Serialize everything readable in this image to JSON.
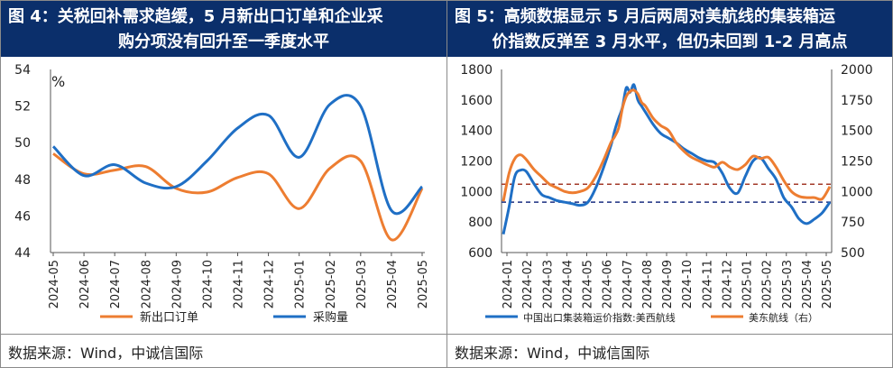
{
  "left": {
    "title_line1": "图 4：关税回补需求趋缓，5 月新出口订单和企业采",
    "title_line2": "购分项没有回升至一季度水平",
    "source": "数据来源：Wind，中诚信国际"
  },
  "right": {
    "title_line1": "图 5：高频数据显示 5 月后两周对美航线的集装箱运",
    "title_line2": "价指数反弹至 3 月水平，但仍未回到 1-2 月高点",
    "source": "数据来源：Wind，中诚信国际"
  },
  "colors": {
    "blue": "#1f6fc5",
    "orange": "#ed7d31",
    "header": "#0b2f6b",
    "ref_red": "#a33a2a",
    "ref_blue": "#1a2f80"
  },
  "chart_data": [
    {
      "type": "line",
      "title": "",
      "unit": "%",
      "categories": [
        "2024-05",
        "2024-06",
        "2024-07",
        "2024-08",
        "2024-09",
        "2024-10",
        "2024-11",
        "2024-12",
        "2025-01",
        "2025-02",
        "2025-03",
        "2025-04",
        "2025-05"
      ],
      "ylim": [
        44,
        54
      ],
      "yticks": [
        44,
        46,
        48,
        50,
        52,
        54
      ],
      "grid": false,
      "legend_position": "bottom",
      "series": [
        {
          "name": "新出口订单",
          "color": "#ed7d31",
          "values": [
            49.4,
            48.3,
            48.5,
            48.7,
            47.5,
            47.3,
            48.1,
            48.3,
            46.4,
            48.6,
            49.0,
            44.7,
            47.5
          ]
        },
        {
          "name": "采购量",
          "color": "#1f6fc5",
          "values": [
            49.8,
            48.2,
            48.8,
            47.8,
            47.6,
            49.0,
            50.8,
            51.5,
            49.2,
            52.1,
            52.0,
            46.3,
            47.6
          ]
        }
      ]
    },
    {
      "type": "line",
      "title": "",
      "categories": [
        "2024-01",
        "2024-02",
        "2024-03",
        "2024-04",
        "2024-05",
        "2024-06",
        "2024-07",
        "2024-08",
        "2024-09",
        "2024-10",
        "2024-11",
        "2024-12",
        "2025-01",
        "2025-02",
        "2025-03",
        "2025-04",
        "2025-05"
      ],
      "ylim_left": [
        600,
        1800
      ],
      "yticks_left": [
        600,
        800,
        1000,
        1200,
        1400,
        1600,
        1800
      ],
      "ylim_right": [
        500,
        2000
      ],
      "yticks_right": [
        500,
        750,
        1000,
        1250,
        1500,
        1750,
        2000
      ],
      "grid": false,
      "legend_position": "bottom",
      "reference_lines": [
        {
          "axis": "right",
          "value": 1060,
          "color": "#a33a2a",
          "style": "dashed"
        },
        {
          "axis": "left",
          "value": 930,
          "color": "#1a2f80",
          "style": "dashed"
        }
      ],
      "series": [
        {
          "name": "中国出口集装箱运价指数:美西航线",
          "axis": "left",
          "color": "#1f6fc5",
          "x": [
            0,
            0.3,
            0.6,
            0.9,
            1.2,
            1.6,
            2.0,
            2.4,
            2.8,
            3.2,
            3.6,
            4.0,
            4.4,
            4.8,
            5.2,
            5.6,
            5.8,
            6.0,
            6.2,
            6.4,
            6.6,
            6.8,
            7.0,
            7.2,
            7.4,
            7.8,
            8.2,
            8.6,
            9.0,
            9.4,
            9.8,
            10.2,
            10.6,
            11.0,
            11.4,
            11.8,
            12.2,
            12.6,
            13.0,
            13.4,
            13.8,
            14.2,
            14.6,
            15.0,
            15.4,
            15.8,
            16.2,
            16.6,
            17.0
          ],
          "values": [
            720,
            900,
            1100,
            1140,
            1130,
            1050,
            980,
            960,
            940,
            930,
            920,
            910,
            930,
            1020,
            1150,
            1300,
            1400,
            1480,
            1550,
            1680,
            1650,
            1700,
            1600,
            1560,
            1520,
            1440,
            1380,
            1350,
            1320,
            1280,
            1250,
            1220,
            1200,
            1190,
            1120,
            1020,
            990,
            1100,
            1200,
            1220,
            1150,
            1080,
            960,
            900,
            820,
            790,
            820,
            860,
            930
          ]
        },
        {
          "name": "美东航线（右）",
          "axis": "right",
          "color": "#ed7d31",
          "x": [
            0,
            0.3,
            0.6,
            0.9,
            1.2,
            1.6,
            2.0,
            2.4,
            2.8,
            3.2,
            3.6,
            4.0,
            4.4,
            4.8,
            5.2,
            5.6,
            5.8,
            6.0,
            6.2,
            6.4,
            6.6,
            6.8,
            7.0,
            7.2,
            7.4,
            7.8,
            8.2,
            8.6,
            9.0,
            9.4,
            9.8,
            10.2,
            10.6,
            11.0,
            11.4,
            11.8,
            12.2,
            12.6,
            13.0,
            13.4,
            13.8,
            14.2,
            14.6,
            15.0,
            15.4,
            15.8,
            16.2,
            16.6,
            17.0
          ],
          "values": [
            920,
            1150,
            1270,
            1300,
            1260,
            1180,
            1120,
            1060,
            1030,
            1000,
            990,
            1000,
            1030,
            1120,
            1250,
            1400,
            1450,
            1520,
            1680,
            1780,
            1820,
            1830,
            1800,
            1730,
            1700,
            1600,
            1540,
            1500,
            1400,
            1330,
            1280,
            1250,
            1220,
            1200,
            1240,
            1200,
            1180,
            1220,
            1290,
            1270,
            1280,
            1200,
            1090,
            1000,
            960,
            950,
            950,
            940,
            1040
          ]
        }
      ]
    }
  ]
}
